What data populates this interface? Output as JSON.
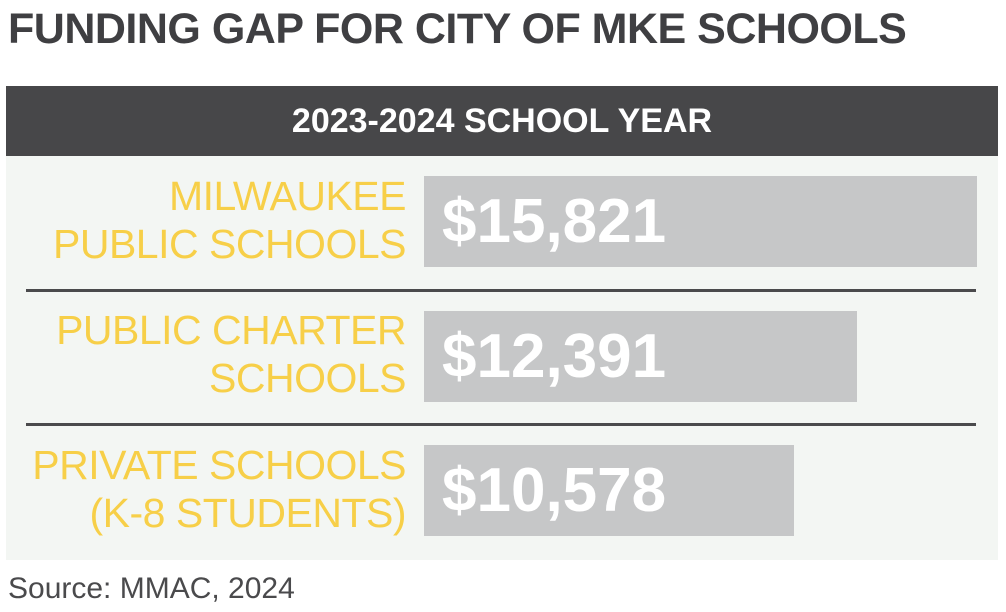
{
  "title": "FUNDING GAP FOR CITY OF MKE SCHOOLS",
  "header": "2023-2024 SCHOOL YEAR",
  "source": "Source: MMAC, 2024",
  "colors": {
    "label": "#f7cf48",
    "bar": "#c6c7c8",
    "header_band": "#474749",
    "panel_bg": "#f3f6f3",
    "title": "#3f3f42"
  },
  "chart_data": {
    "type": "bar",
    "orientation": "horizontal",
    "title": "FUNDING GAP FOR CITY OF MKE SCHOOLS",
    "subtitle": "2023-2024 SCHOOL YEAR",
    "categories": [
      "MILWAUKEE\nPUBLIC SCHOOLS",
      "PUBLIC CHARTER\nSCHOOLS",
      "PRIVATE SCHOOLS\n(K-8 STUDENTS)"
    ],
    "values": [
      15821,
      12391,
      10578
    ],
    "value_labels": [
      "$15,821",
      "$12,391",
      "$10,578"
    ],
    "xlim": [
      0,
      15821
    ],
    "grid": false,
    "legend": "none"
  }
}
